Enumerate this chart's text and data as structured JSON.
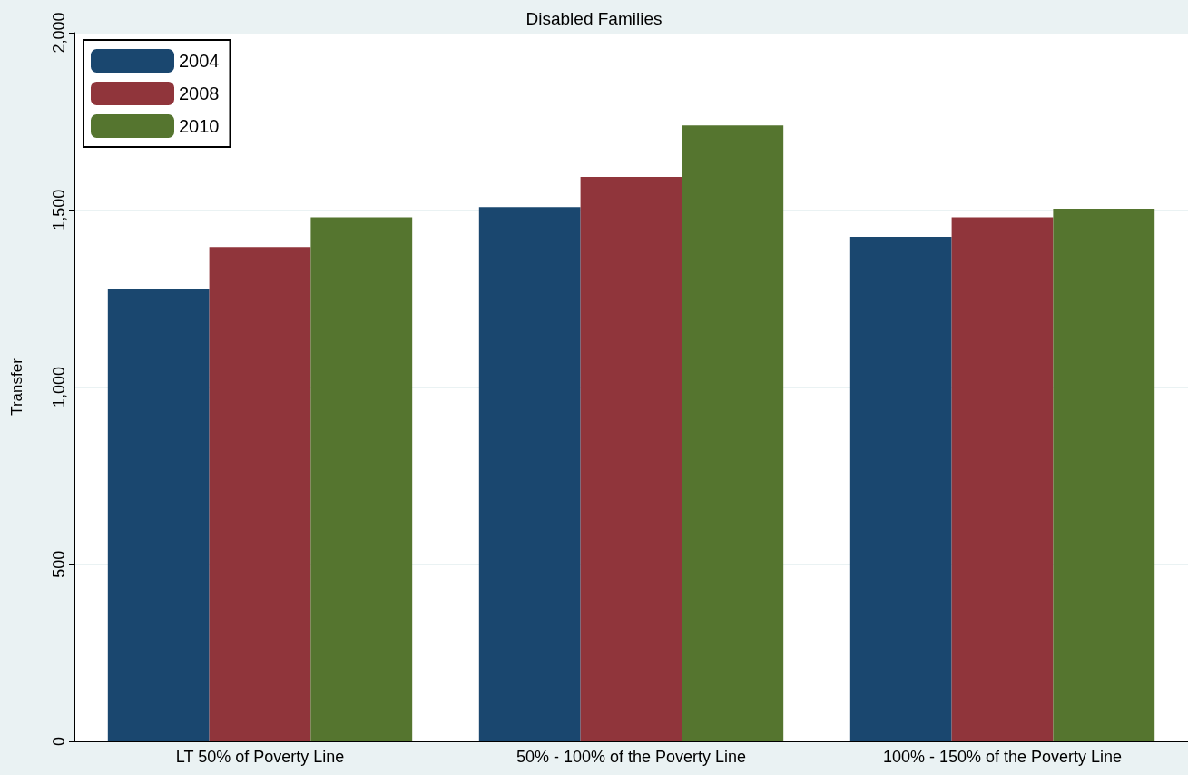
{
  "chart_data": {
    "type": "bar",
    "title": "Disabled Families",
    "ylabel": "Transfer",
    "categories": [
      "LT 50% of Poverty Line",
      "50% - 100% of the Poverty Line",
      "100% - 150% of the Poverty Line"
    ],
    "series": [
      {
        "name": "2004",
        "color": "#1a476f",
        "values": [
          1275,
          1508,
          1424
        ]
      },
      {
        "name": "2008",
        "color": "#90353b",
        "values": [
          1395,
          1593,
          1479
        ]
      },
      {
        "name": "2010",
        "color": "#55752f",
        "values": [
          1479,
          1738,
          1503
        ]
      }
    ],
    "ylim": [
      0,
      2000
    ],
    "yticks": [
      0,
      {
        "value": 500,
        "label": "500"
      },
      {
        "value": 1000,
        "label": "1,000"
      },
      {
        "value": 1500,
        "label": "1,500"
      },
      {
        "value": 2000,
        "label": "2,000"
      }
    ],
    "grid": "y",
    "legend": "top left"
  }
}
